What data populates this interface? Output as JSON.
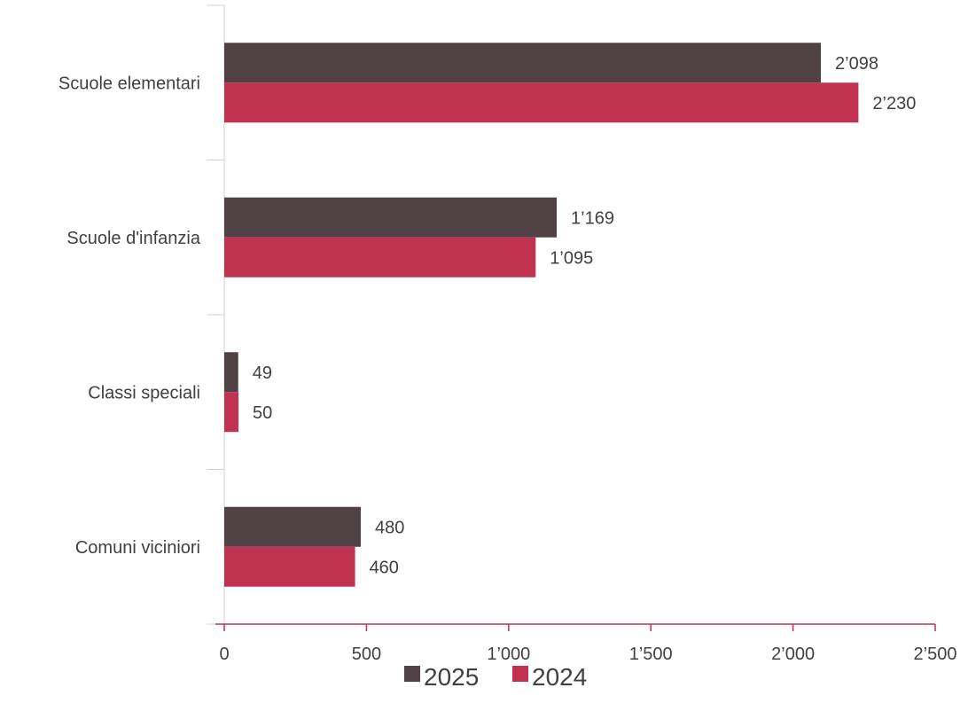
{
  "chart_data": {
    "type": "bar",
    "orientation": "horizontal",
    "categories": [
      "Scuole elementari",
      "Scuole d'infanzia",
      "Classi speciali",
      "Comuni viciniori"
    ],
    "series": [
      {
        "name": "2025",
        "color": "#4f4144",
        "values": [
          2098,
          1169,
          49,
          480
        ],
        "labels": [
          "2’098",
          "1’169",
          "49",
          "480"
        ]
      },
      {
        "name": "2024",
        "color": "#c13150",
        "values": [
          2230,
          1095,
          50,
          460
        ],
        "labels": [
          "2’230",
          "1’095",
          "50",
          "460"
        ]
      }
    ],
    "xlim": [
      0,
      2500
    ],
    "xticks": [
      0,
      500,
      1000,
      1500,
      2000,
      2500
    ],
    "xtick_labels": [
      "0",
      "500",
      "1’000",
      "1’500",
      "2’000",
      "2’500"
    ],
    "legend_position": "bottom",
    "grid": false,
    "axis_color": "#c13150",
    "category_axis_color": "#d0d0d0"
  }
}
